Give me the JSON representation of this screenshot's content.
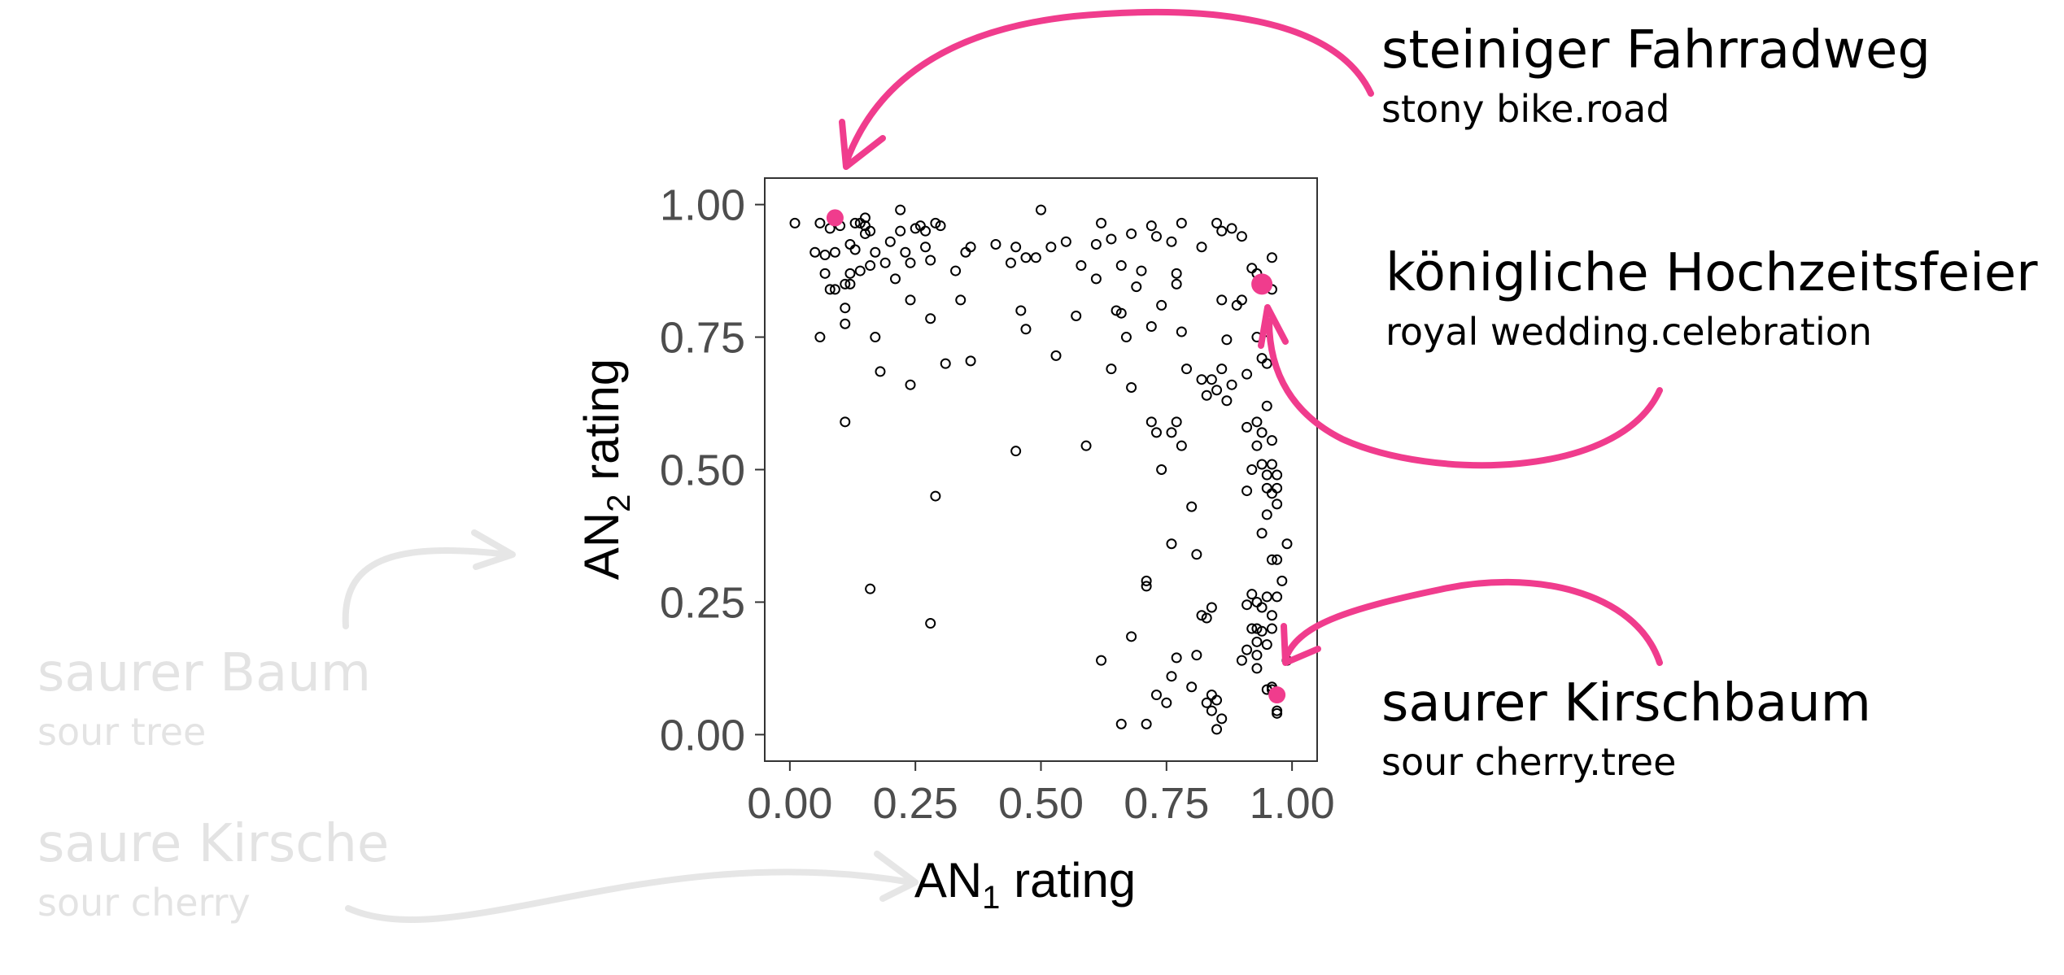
{
  "colors": {
    "highlight": "#f03c8d",
    "faded_text": "#e3e3e3",
    "faded_arrow": "#e6e6e6",
    "tick_text": "#4d4d4d",
    "axis_text": "#000000",
    "point_stroke": "#000000"
  },
  "annotations": {
    "stony": {
      "word": "steiniger Fahrradweg",
      "gloss": "stony bike.road"
    },
    "royal": {
      "word": "königliche Hochzeitsfeier",
      "gloss": "royal wedding.celebration"
    },
    "cherrytree": {
      "word": "saurer Kirschbaum",
      "gloss": "sour cherry.tree"
    },
    "sourtree": {
      "word": "saurer Baum",
      "gloss": "sour tree"
    },
    "sourcherry": {
      "word": "saure Kirsche",
      "gloss": "sour cherry"
    }
  },
  "chart_data": {
    "type": "scatter",
    "title": "",
    "xlabel_main": "AN",
    "xlabel_sub": "1",
    "xlabel_rest": " rating",
    "ylabel_main": "AN",
    "ylabel_sub": "2",
    "ylabel_rest": " rating",
    "xlim": [
      -0.05,
      1.05
    ],
    "ylim": [
      -0.05,
      1.05
    ],
    "xticks": [
      0,
      0.25,
      0.5,
      0.75,
      1
    ],
    "yticks": [
      0,
      0.25,
      0.5,
      0.75,
      1
    ],
    "xtick_labels": [
      "0.00",
      "0.25",
      "0.50",
      "0.75",
      "1.00"
    ],
    "ytick_labels": [
      "0.00",
      "0.25",
      "0.50",
      "0.75",
      "1.00"
    ],
    "grid": false,
    "series": [
      {
        "marker": "open-circle",
        "points": [
          [
            0.01,
            0.965
          ],
          [
            0.05,
            0.91
          ],
          [
            0.06,
            0.965
          ],
          [
            0.07,
            0.905
          ],
          [
            0.07,
            0.87
          ],
          [
            0.08,
            0.955
          ],
          [
            0.08,
            0.84
          ],
          [
            0.09,
            0.91
          ],
          [
            0.1,
            0.96
          ],
          [
            0.11,
            0.85
          ],
          [
            0.12,
            0.925
          ],
          [
            0.12,
            0.87
          ],
          [
            0.13,
            0.965
          ],
          [
            0.13,
            0.915
          ],
          [
            0.14,
            0.965
          ],
          [
            0.14,
            0.875
          ],
          [
            0.15,
            0.975
          ],
          [
            0.15,
            0.96
          ],
          [
            0.15,
            0.945
          ],
          [
            0.16,
            0.95
          ],
          [
            0.17,
            0.91
          ],
          [
            0.19,
            0.89
          ],
          [
            0.2,
            0.93
          ],
          [
            0.22,
            0.99
          ],
          [
            0.22,
            0.95
          ],
          [
            0.23,
            0.91
          ],
          [
            0.24,
            0.89
          ],
          [
            0.25,
            0.955
          ],
          [
            0.26,
            0.96
          ],
          [
            0.27,
            0.92
          ],
          [
            0.27,
            0.95
          ],
          [
            0.28,
            0.895
          ],
          [
            0.29,
            0.965
          ],
          [
            0.3,
            0.96
          ],
          [
            0.33,
            0.875
          ],
          [
            0.35,
            0.91
          ],
          [
            0.36,
            0.92
          ],
          [
            0.41,
            0.925
          ],
          [
            0.44,
            0.89
          ],
          [
            0.45,
            0.92
          ],
          [
            0.47,
            0.9
          ],
          [
            0.49,
            0.9
          ],
          [
            0.5,
            0.99
          ],
          [
            0.52,
            0.92
          ],
          [
            0.55,
            0.93
          ],
          [
            0.58,
            0.885
          ],
          [
            0.61,
            0.925
          ],
          [
            0.62,
            0.965
          ],
          [
            0.64,
            0.935
          ],
          [
            0.66,
            0.885
          ],
          [
            0.68,
            0.945
          ],
          [
            0.7,
            0.875
          ],
          [
            0.72,
            0.96
          ],
          [
            0.73,
            0.94
          ],
          [
            0.76,
            0.93
          ],
          [
            0.77,
            0.87
          ],
          [
            0.78,
            0.965
          ],
          [
            0.82,
            0.92
          ],
          [
            0.85,
            0.965
          ],
          [
            0.86,
            0.95
          ],
          [
            0.88,
            0.955
          ],
          [
            0.9,
            0.94
          ],
          [
            0.06,
            0.75
          ],
          [
            0.09,
            0.84
          ],
          [
            0.11,
            0.775
          ],
          [
            0.11,
            0.805
          ],
          [
            0.12,
            0.85
          ],
          [
            0.16,
            0.885
          ],
          [
            0.17,
            0.75
          ],
          [
            0.18,
            0.685
          ],
          [
            0.21,
            0.86
          ],
          [
            0.24,
            0.82
          ],
          [
            0.24,
            0.66
          ],
          [
            0.28,
            0.785
          ],
          [
            0.31,
            0.7
          ],
          [
            0.34,
            0.82
          ],
          [
            0.36,
            0.705
          ],
          [
            0.46,
            0.8
          ],
          [
            0.47,
            0.765
          ],
          [
            0.53,
            0.715
          ],
          [
            0.57,
            0.79
          ],
          [
            0.61,
            0.86
          ],
          [
            0.64,
            0.69
          ],
          [
            0.65,
            0.8
          ],
          [
            0.66,
            0.795
          ],
          [
            0.67,
            0.75
          ],
          [
            0.68,
            0.655
          ],
          [
            0.69,
            0.845
          ],
          [
            0.72,
            0.77
          ],
          [
            0.74,
            0.81
          ],
          [
            0.77,
            0.85
          ],
          [
            0.78,
            0.76
          ],
          [
            0.79,
            0.69
          ],
          [
            0.82,
            0.67
          ],
          [
            0.83,
            0.64
          ],
          [
            0.84,
            0.67
          ],
          [
            0.85,
            0.65
          ],
          [
            0.86,
            0.69
          ],
          [
            0.87,
            0.63
          ],
          [
            0.88,
            0.66
          ],
          [
            0.89,
            0.81
          ],
          [
            0.9,
            0.82
          ],
          [
            0.91,
            0.68
          ],
          [
            0.92,
            0.88
          ],
          [
            0.93,
            0.87
          ],
          [
            0.93,
            0.75
          ],
          [
            0.94,
            0.71
          ],
          [
            0.95,
            0.7
          ],
          [
            0.96,
            0.84
          ],
          [
            0.95,
            0.76
          ],
          [
            0.86,
            0.82
          ],
          [
            0.87,
            0.745
          ],
          [
            0.96,
            0.9
          ],
          [
            0.11,
            0.59
          ],
          [
            0.45,
            0.535
          ],
          [
            0.59,
            0.545
          ],
          [
            0.29,
            0.45
          ],
          [
            0.16,
            0.275
          ],
          [
            0.28,
            0.21
          ],
          [
            0.72,
            0.59
          ],
          [
            0.73,
            0.57
          ],
          [
            0.74,
            0.5
          ],
          [
            0.76,
            0.57
          ],
          [
            0.77,
            0.59
          ],
          [
            0.78,
            0.545
          ],
          [
            0.8,
            0.43
          ],
          [
            0.76,
            0.36
          ],
          [
            0.71,
            0.28
          ],
          [
            0.71,
            0.29
          ],
          [
            0.81,
            0.34
          ],
          [
            0.91,
            0.58
          ],
          [
            0.92,
            0.5
          ],
          [
            0.93,
            0.545
          ],
          [
            0.93,
            0.59
          ],
          [
            0.94,
            0.57
          ],
          [
            0.94,
            0.51
          ],
          [
            0.95,
            0.49
          ],
          [
            0.96,
            0.51
          ],
          [
            0.97,
            0.49
          ],
          [
            0.95,
            0.465
          ],
          [
            0.96,
            0.455
          ],
          [
            0.97,
            0.465
          ],
          [
            0.91,
            0.46
          ],
          [
            0.94,
            0.38
          ],
          [
            0.95,
            0.415
          ],
          [
            0.97,
            0.33
          ],
          [
            0.96,
            0.33
          ],
          [
            0.99,
            0.36
          ],
          [
            0.92,
            0.265
          ],
          [
            0.93,
            0.25
          ],
          [
            0.94,
            0.24
          ],
          [
            0.95,
            0.26
          ],
          [
            0.96,
            0.225
          ],
          [
            0.91,
            0.245
          ],
          [
            0.97,
            0.26
          ],
          [
            0.98,
            0.29
          ],
          [
            0.96,
            0.555
          ],
          [
            0.95,
            0.62
          ],
          [
            0.97,
            0.435
          ],
          [
            0.62,
            0.14
          ],
          [
            0.66,
            0.02
          ],
          [
            0.68,
            0.185
          ],
          [
            0.71,
            0.02
          ],
          [
            0.73,
            0.075
          ],
          [
            0.75,
            0.06
          ],
          [
            0.76,
            0.11
          ],
          [
            0.77,
            0.145
          ],
          [
            0.8,
            0.09
          ],
          [
            0.81,
            0.15
          ],
          [
            0.83,
            0.22
          ],
          [
            0.83,
            0.06
          ],
          [
            0.84,
            0.075
          ],
          [
            0.84,
            0.045
          ],
          [
            0.85,
            0.01
          ],
          [
            0.85,
            0.065
          ],
          [
            0.86,
            0.03
          ],
          [
            0.9,
            0.14
          ],
          [
            0.91,
            0.16
          ],
          [
            0.92,
            0.2
          ],
          [
            0.93,
            0.175
          ],
          [
            0.93,
            0.15
          ],
          [
            0.93,
            0.2
          ],
          [
            0.94,
            0.195
          ],
          [
            0.95,
            0.17
          ],
          [
            0.95,
            0.085
          ],
          [
            0.96,
            0.2
          ],
          [
            0.96,
            0.09
          ],
          [
            0.97,
            0.04
          ],
          [
            0.97,
            0.045
          ],
          [
            0.99,
            0.14
          ],
          [
            0.96,
            0.085
          ],
          [
            0.93,
            0.125
          ],
          [
            0.82,
            0.225
          ],
          [
            0.84,
            0.24
          ]
        ]
      },
      {
        "marker": "filled-highlight",
        "points": [
          [
            0.09,
            0.975
          ],
          [
            0.94,
            0.85
          ],
          [
            0.97,
            0.075
          ]
        ]
      }
    ]
  }
}
